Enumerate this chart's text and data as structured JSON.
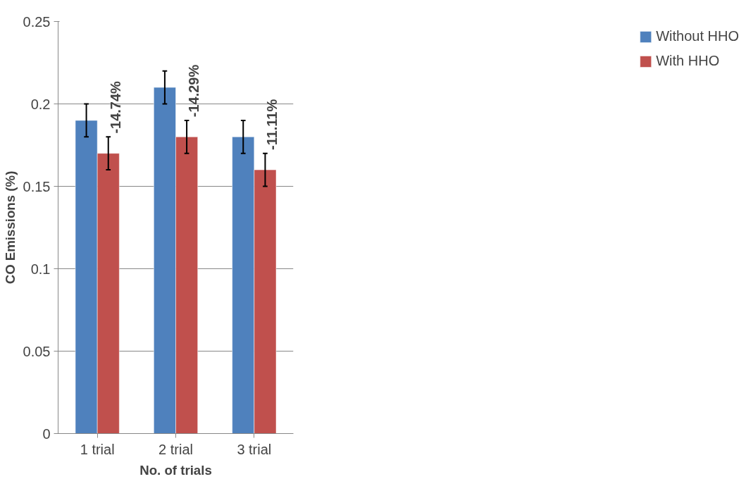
{
  "chart_data": {
    "type": "bar",
    "xlabel": "No. of trials",
    "ylabel": "CO Emissions (%)",
    "categories": [
      "1 trial",
      "2 trial",
      "3 trial"
    ],
    "series": [
      {
        "name": "Without HHO",
        "color": "#4f81bd",
        "values": [
          0.19,
          0.21,
          0.18
        ],
        "errors": [
          0.01,
          0.01,
          0.01
        ]
      },
      {
        "name": "With HHO",
        "color": "#c0504d",
        "values": [
          0.17,
          0.18,
          0.16
        ],
        "errors": [
          0.01,
          0.01,
          0.01
        ]
      }
    ],
    "ylim": [
      0,
      0.25
    ],
    "yticks": [
      0,
      0.05,
      0.1,
      0.15,
      0.2,
      0.25
    ],
    "grid": "y",
    "legend": "right",
    "annotations": [
      {
        "text": "-14.74%",
        "x": "1 trial",
        "y": 0.17
      },
      {
        "text": "-14.29%",
        "x": "2 trial",
        "y": 0.18
      },
      {
        "text": "-11.11%",
        "x": "3 trial",
        "y": 0.16
      }
    ]
  }
}
